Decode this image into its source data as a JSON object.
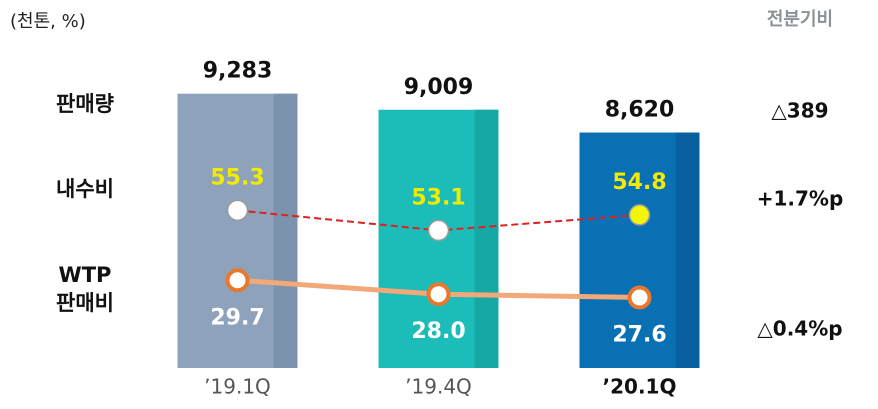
{
  "chart_data": {
    "type": "bar-line",
    "unit_label": "(천톤, %)",
    "change_header": "전분기비",
    "categories": [
      "’19.1Q",
      "’19.4Q",
      "’20.1Q"
    ],
    "bars": {
      "name": "판매량",
      "values": [
        9283,
        9009,
        8620
      ],
      "value_labels": [
        "9,283",
        "9,009",
        "8,620"
      ],
      "colors": [
        "#8ea3bb",
        "#1cbcb8",
        "#0a70b4"
      ],
      "edge_colors": [
        "#7c93ad",
        "#15a8a4",
        "#0860a0"
      ],
      "ylim": [
        4600,
        10200
      ],
      "change": "△389"
    },
    "series": [
      {
        "name": "내수비",
        "values": [
          55.3,
          53.1,
          54.8
        ],
        "color": "#e02020",
        "dashed": true,
        "marker_colors": [
          "#ffffff",
          "#ffffff",
          "#f5f50a"
        ],
        "marker_stroke": "#9a9a9a",
        "label_color": "#f2ea00",
        "ylim": [
          38,
          74
        ],
        "change": "+1.7%p"
      },
      {
        "name": "WTP\n판매비",
        "values": [
          29.7,
          28.0,
          27.6
        ],
        "value_labels": [
          "29.7",
          "28.0",
          "27.6"
        ],
        "color": "#f2a878",
        "dashed": false,
        "marker_colors": [
          "#ffffff",
          "#ffffff",
          "#ffffff"
        ],
        "marker_stroke": "#e8782c",
        "label_color": "#ffffff",
        "ylim": [
          19,
          59
        ],
        "change": "△0.4%p"
      }
    ]
  }
}
